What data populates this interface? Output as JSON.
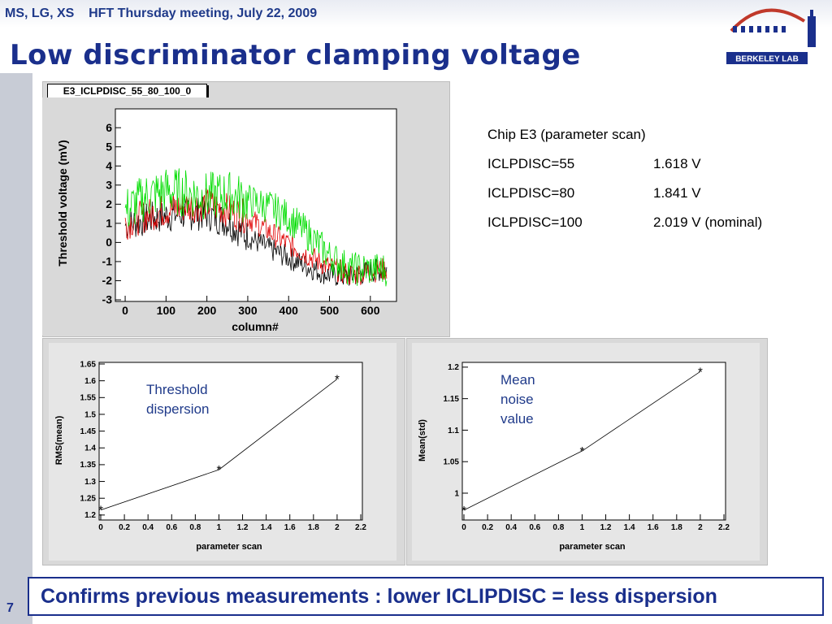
{
  "header": {
    "authors": "MS, LG, XS",
    "meeting": "HFT Thursday meeting, July 22, 2009",
    "logo_text": "BERKELEY LAB"
  },
  "slide_title": "Low discriminator clamping voltage",
  "page_number": "7",
  "main_plot": {
    "histogram_label": "E3_ICLPDISC_55_80_100_0",
    "xlabel": "column#",
    "ylabel": "Threshold voltage (mV)"
  },
  "info": {
    "line1": "Chip E3 (parameter scan)",
    "rows": [
      {
        "name": "ICLPDISC=55",
        "value": "1.618 V"
      },
      {
        "name": "ICLPDISC=80",
        "value": "1.841 V"
      },
      {
        "name": "ICLPDISC=100",
        "value": "2.019 V (nominal)"
      }
    ]
  },
  "notes": {
    "left_line1": "Threshold",
    "left_line2": "dispersion",
    "right_line1": "Mean",
    "right_line2": "noise",
    "right_line3": "value"
  },
  "conclusion": "Confirms previous measurements : lower ICLIPDISC = less dispersion",
  "colors": {
    "title": "#1a2f8c",
    "black_series": "#000000",
    "red_series": "#e00000",
    "green_series": "#00dd00"
  },
  "chart_data": [
    {
      "type": "line",
      "xlabel": "column#",
      "ylabel": "Threshold voltage (mV)",
      "xlim": [
        -20,
        660
      ],
      "ylim": [
        -3,
        6.9
      ],
      "xticks": [
        "0",
        "100",
        "200",
        "300",
        "400",
        "500",
        "600"
      ],
      "yticks": [
        "-3",
        "-2",
        "-1",
        "0",
        "1",
        "2",
        "3",
        "4",
        "5",
        "6"
      ],
      "x": [
        0,
        50,
        100,
        150,
        200,
        250,
        300,
        350,
        400,
        450,
        500,
        550,
        600,
        640
      ],
      "series": [
        {
          "color": "#000000",
          "values": [
            0.9,
            1.2,
            1.4,
            1.5,
            1.5,
            1.1,
            0.3,
            -0.3,
            -0.8,
            -1.3,
            -1.7,
            -1.8,
            -1.5,
            -1.4
          ]
        },
        {
          "color": "#e00000",
          "values": [
            1.0,
            1.4,
            1.7,
            1.9,
            2.0,
            1.7,
            1.3,
            0.6,
            -0.1,
            -0.7,
            -1.3,
            -1.7,
            -1.5,
            -1.4
          ]
        },
        {
          "color": "#00dd00",
          "values": [
            1.6,
            2.4,
            2.7,
            2.6,
            2.4,
            2.5,
            2.2,
            1.9,
            1.3,
            0.4,
            -0.7,
            -1.4,
            -1.4,
            -1.4
          ]
        }
      ]
    },
    {
      "type": "line",
      "xlabel": "parameter scan",
      "ylabel": "RMS(mean)",
      "xlim": [
        0,
        2.2
      ],
      "ylim": [
        1.19,
        1.65
      ],
      "xticks": [
        "0",
        "0.2",
        "0.4",
        "0.6",
        "0.8",
        "1",
        "1.2",
        "1.4",
        "1.6",
        "1.8",
        "2",
        "2.2"
      ],
      "yticks": [
        "1.2",
        "1.25",
        "1.3",
        "1.35",
        "1.4",
        "1.45",
        "1.5",
        "1.55",
        "1.6",
        "1.65"
      ],
      "x": [
        0,
        1,
        2
      ],
      "values": [
        1.215,
        1.335,
        1.605
      ]
    },
    {
      "type": "line",
      "xlabel": "parameter scan",
      "ylabel": "Mean(std)",
      "xlim": [
        0,
        2.2
      ],
      "ylim": [
        0.96,
        1.205
      ],
      "xticks": [
        "0",
        "0.2",
        "0.4",
        "0.6",
        "0.8",
        "1",
        "1.2",
        "1.4",
        "1.6",
        "1.8",
        "2",
        "2.2"
      ],
      "yticks": [
        "1",
        "1.05",
        "1.1",
        "1.15",
        "1.2"
      ],
      "x": [
        0,
        1,
        2
      ],
      "values": [
        0.973,
        1.067,
        1.193
      ]
    }
  ]
}
